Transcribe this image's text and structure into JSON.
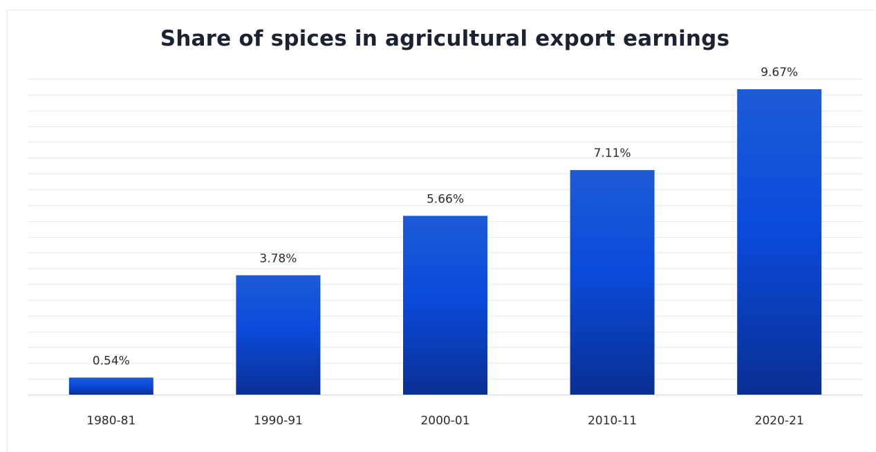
{
  "chart_data": {
    "type": "bar",
    "title": "Share of spices in agricultural export earnings",
    "categories": [
      "1980-81",
      "1990-91",
      "2000-01",
      "2010-11",
      "2020-21"
    ],
    "values": [
      0.54,
      3.78,
      5.66,
      7.11,
      9.67
    ],
    "value_labels": [
      "0.54%",
      "3.78%",
      "5.66%",
      "7.11%",
      "9.67%"
    ],
    "xlabel": "",
    "ylabel": "",
    "ylim": [
      0,
      10
    ],
    "grid": true,
    "legend": "none",
    "colors": {
      "bar_top": "#1d5bd6",
      "bar_mid": "#0b4bdc",
      "bar_bottom": "#0a2f94",
      "grid": "#e4edf7",
      "axis": "#d0dbe8",
      "text": "#2b2b2b",
      "title": "#1b2333"
    }
  }
}
